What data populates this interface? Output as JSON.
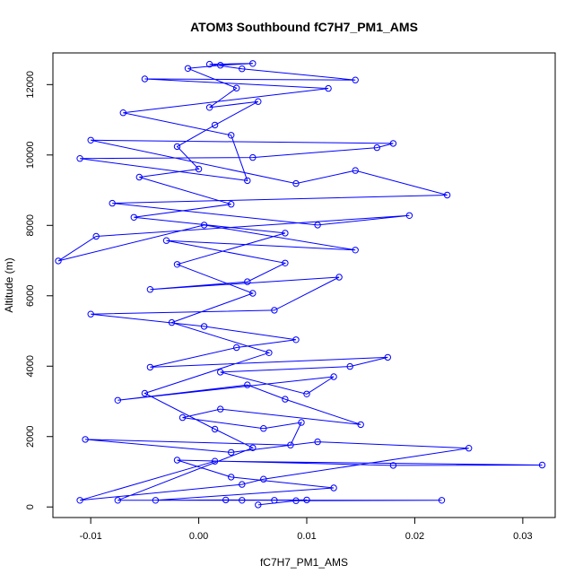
{
  "chart_data": {
    "type": "scatter",
    "title": "ATOM3 Southbound fC7H7_PM1_AMS",
    "xlabel": "fC7H7_PM1_AMS",
    "ylabel": "Altitude (m)",
    "xlim": [
      -0.0135,
      0.033
    ],
    "ylim": [
      -300,
      12900
    ],
    "x_ticks": [
      -0.01,
      0.0,
      0.01,
      0.02,
      0.03
    ],
    "x_tick_labels": [
      "-0.01",
      "0.00",
      "0.01",
      "0.02",
      "0.03"
    ],
    "y_ticks": [
      0,
      2000,
      4000,
      6000,
      8000,
      10000,
      12000
    ],
    "y_tick_labels": [
      "0",
      "2000",
      "4000",
      "6000",
      "8000",
      "10000",
      "12000"
    ],
    "grid": false,
    "legend": "none",
    "series": [
      {
        "color": "#0000ff",
        "marker": "open-circle",
        "line": true,
        "points": [
          [
            0.0055,
            60
          ],
          [
            0.009,
            180
          ],
          [
            0.0225,
            190
          ],
          [
            0.007,
            190
          ],
          [
            0.0025,
            200
          ],
          [
            -0.004,
            190
          ],
          [
            0.0125,
            540
          ],
          [
            0.003,
            850
          ],
          [
            -0.002,
            1330
          ],
          [
            0.018,
            1180
          ],
          [
            0.0318,
            1190
          ],
          [
            0.0015,
            1300
          ],
          [
            -0.011,
            190
          ],
          [
            0.004,
            640
          ],
          [
            0.006,
            790
          ],
          [
            0.025,
            1670
          ],
          [
            0.011,
            1850
          ],
          [
            0.003,
            1550
          ],
          [
            -0.0105,
            1920
          ],
          [
            0.0085,
            1760
          ],
          [
            0.0095,
            2400
          ],
          [
            0.006,
            2230
          ],
          [
            -0.0015,
            2540
          ],
          [
            0.002,
            2780
          ],
          [
            0.015,
            2340
          ],
          [
            0.008,
            3060
          ],
          [
            0.0045,
            3470
          ],
          [
            -0.0075,
            3030
          ],
          [
            0.0125,
            3700
          ],
          [
            0.01,
            3210
          ],
          [
            0.002,
            3830
          ],
          [
            0.014,
            3990
          ],
          [
            0.0175,
            4250
          ],
          [
            -0.0045,
            3970
          ],
          [
            0.0035,
            4530
          ],
          [
            0.009,
            4750
          ],
          [
            0.0005,
            5130
          ],
          [
            -0.01,
            5480
          ],
          [
            0.007,
            5590
          ],
          [
            0.013,
            6530
          ],
          [
            -0.0045,
            6180
          ],
          [
            0.0045,
            6400
          ],
          [
            0.008,
            6930
          ],
          [
            -0.003,
            7570
          ],
          [
            0.0145,
            7300
          ],
          [
            0.0005,
            8010
          ],
          [
            -0.013,
            6990
          ],
          [
            -0.0095,
            7690
          ],
          [
            0.0195,
            8280
          ],
          [
            0.011,
            8010
          ],
          [
            -0.008,
            8630
          ],
          [
            0.023,
            8860
          ],
          [
            0.0145,
            9560
          ],
          [
            0.009,
            9190
          ],
          [
            -0.01,
            10420
          ],
          [
            0.018,
            10330
          ],
          [
            0.0165,
            10210
          ],
          [
            0.005,
            9930
          ],
          [
            -0.011,
            9900
          ],
          [
            0.0045,
            9270
          ],
          [
            0.003,
            10560
          ],
          [
            -0.007,
            11200
          ],
          [
            0.012,
            11890
          ],
          [
            -0.005,
            12160
          ],
          [
            0.0145,
            12130
          ],
          [
            0.004,
            12450
          ],
          [
            0.001,
            12580
          ],
          [
            0.005,
            12600
          ],
          [
            0.002,
            12550
          ],
          [
            -0.001,
            12460
          ],
          [
            0.0035,
            11900
          ],
          [
            0.001,
            11350
          ],
          [
            0.0055,
            11520
          ],
          [
            0.0015,
            10850
          ],
          [
            -0.002,
            10240
          ],
          [
            0.0,
            9600
          ],
          [
            -0.0055,
            9370
          ],
          [
            0.003,
            8600
          ],
          [
            -0.006,
            8230
          ],
          [
            0.008,
            7780
          ],
          [
            -0.002,
            6890
          ],
          [
            0.005,
            6070
          ],
          [
            -0.0025,
            5240
          ],
          [
            0.0065,
            4380
          ],
          [
            -0.005,
            3230
          ],
          [
            0.0015,
            2210
          ],
          [
            0.005,
            1680
          ],
          [
            -0.0075,
            190
          ],
          [
            0.004,
            190
          ],
          [
            0.01,
            200
          ]
        ]
      }
    ]
  }
}
